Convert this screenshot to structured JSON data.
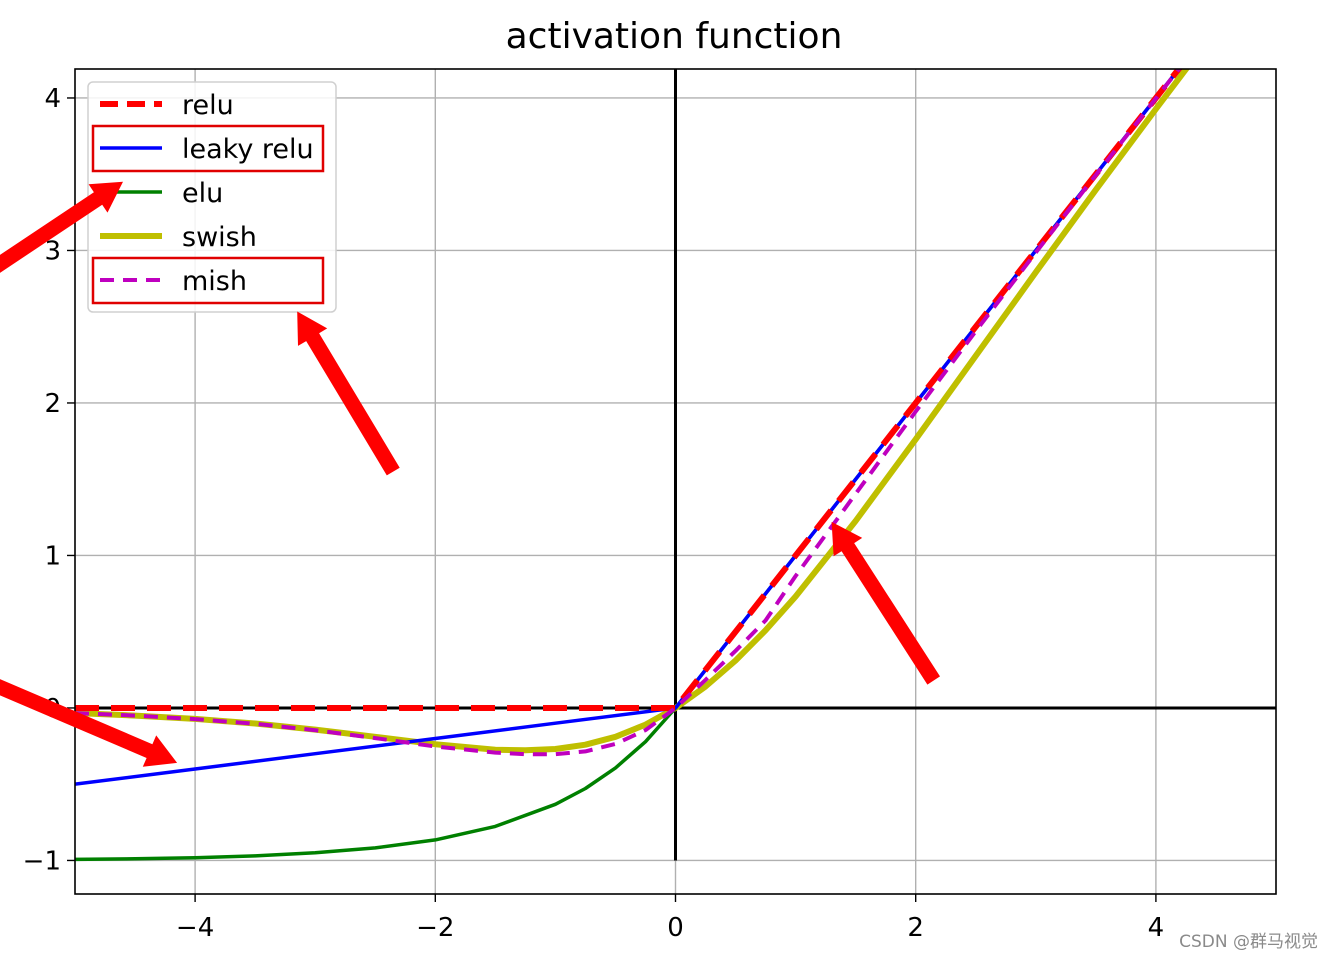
{
  "chart_data": {
    "type": "line",
    "title": "activation function",
    "xlabel": "",
    "ylabel": "",
    "xlim": [
      -5,
      5
    ],
    "ylim": [
      -1.22,
      4.19
    ],
    "grid": true,
    "legend_position": "top-left",
    "x_ticks": [
      -4,
      -2,
      0,
      2,
      4
    ],
    "x_tick_labels": [
      "−4",
      "−2",
      "0",
      "2",
      "4"
    ],
    "y_ticks": [
      -1,
      0,
      1,
      2,
      3,
      4
    ],
    "y_tick_labels": [
      "−1",
      "0",
      "1",
      "2",
      "3",
      "4"
    ],
    "series": [
      {
        "name": "relu",
        "color": "#ff0000",
        "style": "dashed",
        "x": [
          -5,
          -4,
          -3,
          -2,
          -1,
          0,
          1,
          2,
          3,
          4,
          5
        ],
        "values": [
          0,
          0,
          0,
          0,
          0,
          0,
          1,
          2,
          3,
          4,
          5
        ]
      },
      {
        "name": "leaky relu",
        "color": "#0000ff",
        "style": "solid",
        "x": [
          -5,
          -4,
          -3,
          -2,
          -1,
          0,
          1,
          2,
          3,
          4,
          5
        ],
        "values": [
          -0.5,
          -0.4,
          -0.3,
          -0.2,
          -0.1,
          0,
          1,
          2,
          3,
          4,
          5
        ]
      },
      {
        "name": "elu",
        "color": "#008000",
        "style": "solid",
        "x": [
          -5,
          -4.5,
          -4,
          -3.5,
          -3,
          -2.5,
          -2,
          -1.5,
          -1,
          -0.75,
          -0.5,
          -0.25,
          0,
          1,
          2,
          3,
          4,
          5
        ],
        "values": [
          -0.993,
          -0.989,
          -0.982,
          -0.97,
          -0.95,
          -0.918,
          -0.865,
          -0.777,
          -0.632,
          -0.528,
          -0.393,
          -0.221,
          0,
          1,
          2,
          3,
          4,
          5
        ]
      },
      {
        "name": "swish",
        "color": "#bfbf00",
        "style": "solid",
        "x": [
          -5,
          -4.5,
          -4,
          -3.5,
          -3,
          -2.5,
          -2,
          -1.5,
          -1.25,
          -1,
          -0.75,
          -0.5,
          -0.25,
          0,
          0.25,
          0.5,
          0.75,
          1,
          1.5,
          2,
          2.5,
          3,
          3.5,
          4,
          4.5,
          5
        ],
        "values": [
          -0.033,
          -0.05,
          -0.072,
          -0.102,
          -0.142,
          -0.189,
          -0.238,
          -0.274,
          -0.278,
          -0.269,
          -0.241,
          -0.189,
          -0.109,
          0,
          0.141,
          0.311,
          0.509,
          0.731,
          1.226,
          1.762,
          2.309,
          2.857,
          3.398,
          3.928,
          4.45,
          4.967
        ]
      },
      {
        "name": "mish",
        "color": "#bf00bf",
        "style": "dashed",
        "x": [
          -5,
          -4.5,
          -4,
          -3.5,
          -3,
          -2.5,
          -2,
          -1.5,
          -1.25,
          -1,
          -0.75,
          -0.5,
          -0.25,
          0,
          0.25,
          0.5,
          0.75,
          1,
          1.5,
          2,
          2.5,
          3,
          3.5,
          4,
          4.5,
          5
        ],
        "values": [
          -0.034,
          -0.05,
          -0.073,
          -0.104,
          -0.146,
          -0.198,
          -0.253,
          -0.293,
          -0.303,
          -0.303,
          -0.285,
          -0.236,
          -0.145,
          0,
          0.184,
          0.375,
          0.574,
          0.865,
          1.404,
          1.944,
          2.471,
          2.987,
          3.494,
          3.997,
          4.499,
          5
        ]
      }
    ],
    "axes_lines": {
      "x_axis_at": 0,
      "y_axis_at": 0,
      "color": "#000000"
    },
    "highlights": [
      {
        "type": "box",
        "target": "leaky relu",
        "color": "#e00000"
      },
      {
        "type": "box",
        "target": "mish",
        "color": "#e00000"
      }
    ],
    "arrows": [
      {
        "from": [
          -6.6,
          2.4
        ],
        "to": [
          -4.6,
          3.45
        ],
        "color": "#ff0000"
      },
      {
        "from": [
          -2.35,
          1.55
        ],
        "to": [
          -3.15,
          2.6
        ],
        "color": "#ff0000"
      },
      {
        "from": [
          2.15,
          0.18
        ],
        "to": [
          1.3,
          1.22
        ],
        "color": "#ff0000"
      },
      {
        "from": [
          -6.35,
          0.38
        ],
        "to": [
          -4.15,
          -0.36
        ],
        "color": "#ff0000"
      }
    ]
  },
  "watermark": "CSDN @群马视觉"
}
